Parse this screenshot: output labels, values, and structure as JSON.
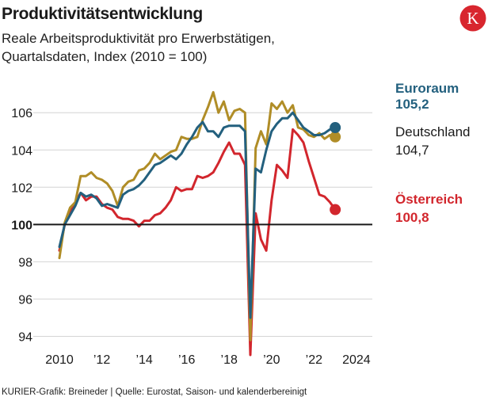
{
  "header": {
    "title": "Produktivitätsentwicklung",
    "subtitle_line1": "Reale Arbeitsproduktivität pro Erwerbstätigen,",
    "subtitle_line2": "Quartalsdaten, Index (2010 = 100)"
  },
  "logo": {
    "letter": "K",
    "color": "#d8262e"
  },
  "footer": {
    "source": "KURIER-Grafik: Breineder | Quelle: Eurostat, Saison- und kalenderbereinigt"
  },
  "chart_data": {
    "type": "line",
    "title": "Produktivitätsentwicklung",
    "xlabel": "",
    "ylabel": "Index (2010 = 100)",
    "xlim": [
      2010,
      2024.75
    ],
    "ylim": [
      93,
      107.2
    ],
    "y_ticks": [
      94,
      96,
      98,
      100,
      102,
      104,
      106
    ],
    "x_ticks": [
      {
        "value": 2010,
        "label": "2010"
      },
      {
        "value": 2012,
        "label": "’12"
      },
      {
        "value": 2014,
        "label": "’14"
      },
      {
        "value": 2016,
        "label": "’16"
      },
      {
        "value": 2018,
        "label": "’18"
      },
      {
        "value": 2020,
        "label": "’20"
      },
      {
        "value": 2022,
        "label": "’22"
      },
      {
        "value": 2024,
        "label": "2024"
      }
    ],
    "baseline": 100,
    "grid": true,
    "start": 2010,
    "step": 0.25,
    "series": [
      {
        "name": "Euroraum",
        "label_value": "105,2",
        "color": "#23607e",
        "values": [
          98.8,
          100.0,
          100.5,
          101.0,
          101.7,
          101.5,
          101.6,
          101.4,
          101.0,
          101.1,
          101.0,
          100.9,
          101.6,
          101.8,
          101.9,
          102.1,
          102.4,
          102.8,
          103.2,
          103.3,
          103.5,
          103.7,
          103.5,
          103.8,
          104.3,
          104.7,
          105.2,
          105.5,
          105.0,
          105.0,
          104.7,
          105.2,
          105.3,
          105.3,
          105.3,
          105.0,
          95.0,
          103.0,
          102.8,
          104.0,
          105.0,
          105.4,
          105.7,
          105.7,
          106.0,
          105.6,
          105.2,
          105.0,
          104.8,
          104.8,
          104.9,
          105.1,
          105.2
        ]
      },
      {
        "name": "Deutschland",
        "label_value": "104,7",
        "color": "#b08d27",
        "values": [
          98.2,
          100.1,
          100.9,
          101.2,
          102.6,
          102.6,
          102.8,
          102.5,
          102.4,
          102.2,
          101.8,
          101.0,
          102.0,
          102.3,
          102.4,
          102.9,
          103.0,
          103.3,
          103.8,
          103.5,
          103.7,
          103.9,
          104.0,
          104.7,
          104.6,
          104.6,
          104.7,
          105.6,
          106.3,
          107.1,
          106.0,
          106.6,
          105.6,
          106.1,
          106.2,
          106.0,
          93.8,
          104.1,
          105.0,
          104.3,
          106.5,
          106.2,
          106.6,
          106.0,
          106.4,
          105.2,
          105.1,
          104.8,
          104.7,
          104.9,
          104.6,
          104.8,
          104.7
        ]
      },
      {
        "name": "Österreich",
        "label_value": "100,8",
        "color": "#d2262d",
        "values": [
          98.6,
          100.0,
          100.7,
          101.2,
          101.7,
          101.3,
          101.5,
          101.5,
          101.1,
          100.9,
          100.8,
          100.4,
          100.3,
          100.3,
          100.2,
          99.9,
          100.2,
          100.2,
          100.5,
          100.6,
          100.9,
          101.3,
          102.0,
          101.8,
          101.9,
          101.9,
          102.6,
          102.5,
          102.6,
          102.8,
          103.3,
          103.9,
          104.4,
          103.8,
          103.8,
          103.2,
          93.0,
          100.6,
          99.2,
          98.6,
          101.3,
          103.2,
          102.9,
          102.5,
          105.1,
          104.8,
          104.4,
          103.4,
          102.5,
          101.6,
          101.5,
          101.2,
          100.8
        ]
      }
    ]
  }
}
